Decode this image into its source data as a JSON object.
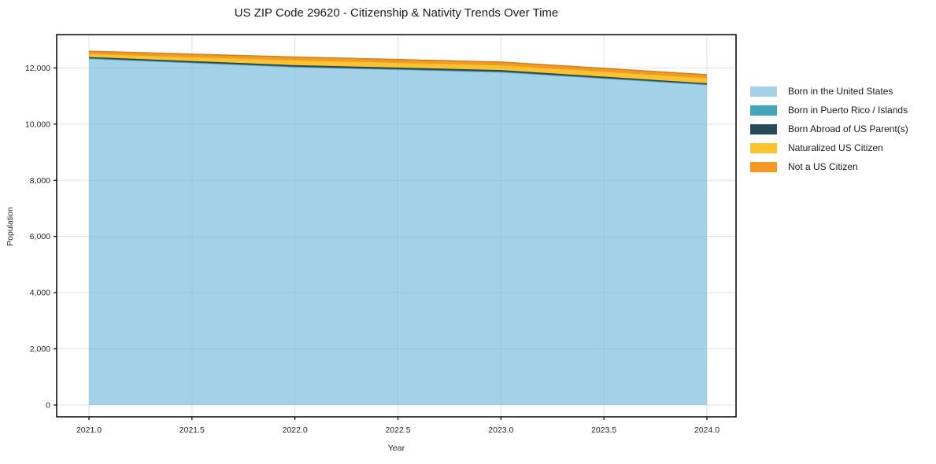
{
  "title": "US ZIP Code 29620 - Citizenship & Nativity Trends Over Time",
  "chart_data": {
    "type": "area",
    "stacked": true,
    "title": "US ZIP Code 29620 - Citizenship & Nativity Trends Over Time",
    "xlabel": "Year",
    "ylabel": "Population",
    "x": [
      2021,
      2022,
      2023,
      2024
    ],
    "series": [
      {
        "name": "Born in the United States",
        "color": "#a3d2e8",
        "values": [
          12330,
          12030,
          11850,
          11400
        ]
      },
      {
        "name": "Born in Puerto Rico / Islands",
        "color": "#41a6bb",
        "values": [
          20,
          20,
          20,
          20
        ]
      },
      {
        "name": "Born Abroad of US Parent(s)",
        "color": "#26495c",
        "values": [
          40,
          50,
          55,
          35
        ]
      },
      {
        "name": "Naturalized US Citizen",
        "color": "#fdc32f",
        "values": [
          120,
          190,
          185,
          195
        ]
      },
      {
        "name": "Not a US Citizen",
        "color": "#f69824",
        "values": [
          85,
          100,
          100,
          110
        ]
      }
    ],
    "x_domain": [
      2021,
      2024
    ],
    "y_domain": [
      0,
      12000
    ],
    "xticks": [
      {
        "v": 2021.0,
        "label": "2021.0"
      },
      {
        "v": 2021.5,
        "label": "2021.5"
      },
      {
        "v": 2022.0,
        "label": "2022.0"
      },
      {
        "v": 2022.5,
        "label": "2022.5"
      },
      {
        "v": 2023.0,
        "label": "2023.0"
      },
      {
        "v": 2023.5,
        "label": "2023.5"
      },
      {
        "v": 2024.0,
        "label": "2024.0"
      }
    ],
    "yticks": [
      {
        "v": 0,
        "label": "0"
      },
      {
        "v": 2000,
        "label": "2,000"
      },
      {
        "v": 4000,
        "label": "4,000"
      },
      {
        "v": 6000,
        "label": "6,000"
      },
      {
        "v": 8000,
        "label": "8,000"
      },
      {
        "v": 10000,
        "label": "10,000"
      },
      {
        "v": 12000,
        "label": "12,000"
      }
    ],
    "grid": true,
    "legend_position": "right",
    "grid_color": "#ececec",
    "spine_color": "#000000",
    "tick_text_color": "#262626"
  }
}
